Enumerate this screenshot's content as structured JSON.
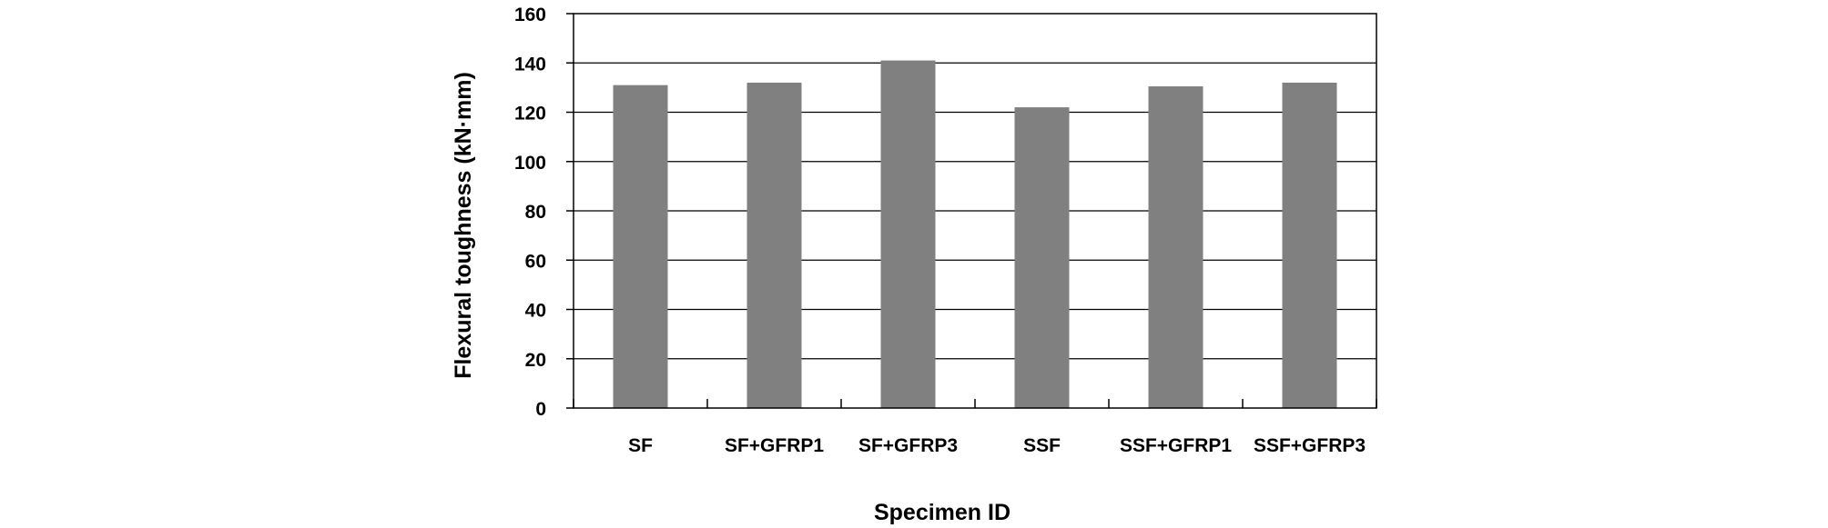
{
  "chart_data": {
    "type": "bar",
    "title": "",
    "xlabel": "Specimen ID",
    "ylabel": "Flexural toughness (kN·mm)",
    "categories": [
      "SF",
      "SF+GFRP1",
      "SF+GFRP3",
      "SSF",
      "SSF+GFRP1",
      "SSF+GFRP3"
    ],
    "values": [
      131,
      132,
      141,
      122,
      130.5,
      132
    ],
    "ylim": [
      0,
      160
    ],
    "yticks": [
      0,
      20,
      40,
      60,
      80,
      100,
      120,
      140,
      160
    ],
    "grid": true,
    "legend": false,
    "colors": {
      "bar": "#808080",
      "grid": "#000000",
      "axis": "#000000"
    }
  }
}
